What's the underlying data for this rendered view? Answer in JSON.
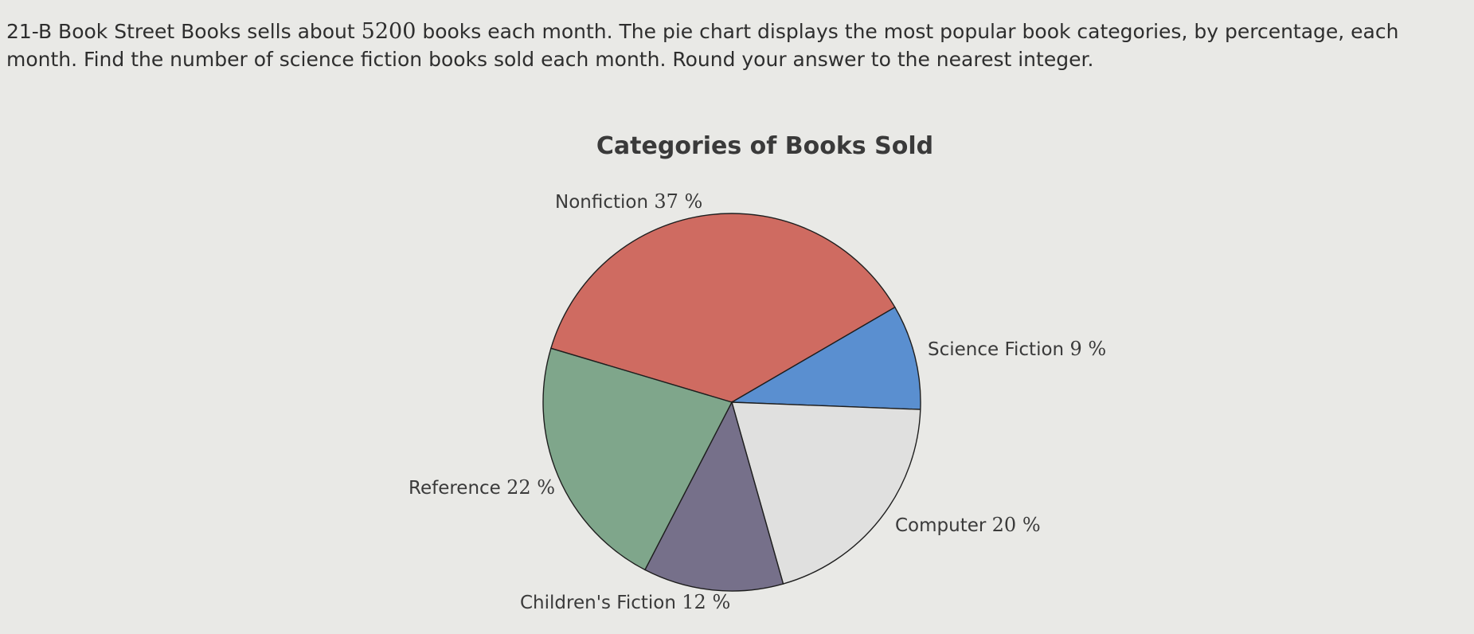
{
  "question": {
    "prefix": "21-B Book Street Books sells about ",
    "number": "5200",
    "suffix": " books each month. The pie chart displays the most popular book categories, by percentage, each month. Find the number of science fiction books sold each month. Round your answer to the nearest integer."
  },
  "chart_data": {
    "type": "pie",
    "title": "Categories of Books Sold",
    "slices": [
      {
        "label": "Nonfiction",
        "value": 37,
        "display": "37 %",
        "color": "#cf6b61"
      },
      {
        "label": "Science Fiction",
        "value": 9,
        "display": "9 %",
        "color": "#5a8fd0"
      },
      {
        "label": "Computer",
        "value": 20,
        "display": "20 %",
        "color": "#e0e0df"
      },
      {
        "label": "Children's Fiction",
        "value": 12,
        "display": "12 %",
        "color": "#76708a"
      },
      {
        "label": "Reference",
        "value": 22,
        "display": "22 %",
        "color": "#7fa68b"
      }
    ]
  }
}
